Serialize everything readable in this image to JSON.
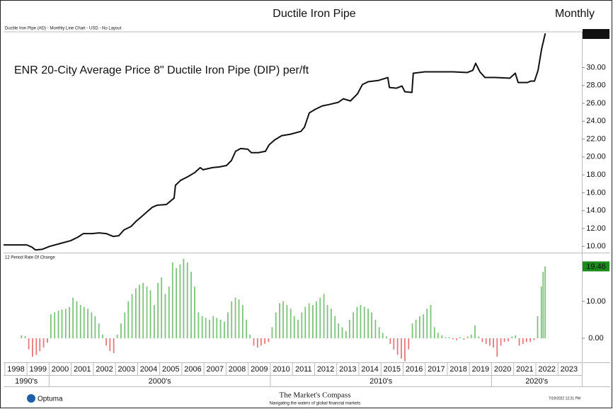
{
  "chart_data": [
    {
      "type": "line",
      "title": "Ductile Iron Pipe",
      "subtitle": "Monthly",
      "caption": "Ductile Iron Pipe (AD) - Monthly Line Chart - USD - No Layout",
      "annotation": "ENR 20-City Average Price 8\" Ductile Iron Pipe (DIP) per/ft",
      "color": "#111111",
      "title_color": "#2e8b2e",
      "x": [
        1997.94,
        1998.99,
        1999.22,
        1999.38,
        1999.7,
        2000.02,
        2000.5,
        2000.98,
        2001.3,
        2001.55,
        2001.94,
        2002.26,
        2002.58,
        2002.9,
        2003.15,
        2003.38,
        2003.7,
        2003.92,
        2004.18,
        2004.4,
        2004.66,
        2004.88,
        2005.3,
        2005.65,
        2005.71,
        2005.94,
        2006.26,
        2006.58,
        2006.83,
        2006.96,
        2007.38,
        2007.7,
        2008.02,
        2008.24,
        2008.43,
        2008.66,
        2008.98,
        2009.14,
        2009.46,
        2009.78,
        2009.94,
        2010.19,
        2010.51,
        2010.9,
        2011.38,
        2011.54,
        2011.76,
        2012.02,
        2012.34,
        2012.66,
        2013.07,
        2013.3,
        2013.62,
        2013.94,
        2014.16,
        2014.42,
        2014.9,
        2015.31,
        2015.38,
        2015.7,
        2015.95,
        2016.08,
        2016.4,
        2016.46,
        2016.98,
        2017.62,
        2018.26,
        2018.9,
        2019.15,
        2019.28,
        2019.47,
        2019.7,
        2020.18,
        2020.82,
        2021.07,
        2021.2,
        2021.62,
        2021.78,
        2021.94,
        2022.1,
        2022.26,
        2022.42,
        2022.45
      ],
      "values": [
        10.16,
        10.16,
        9.92,
        9.6,
        9.68,
        10.0,
        10.32,
        10.64,
        11.03,
        11.43,
        11.43,
        11.51,
        11.43,
        11.11,
        11.19,
        11.83,
        12.22,
        12.78,
        13.33,
        13.81,
        14.37,
        14.6,
        14.68,
        15.4,
        16.83,
        17.38,
        17.78,
        18.25,
        18.81,
        18.57,
        18.81,
        18.89,
        19.05,
        19.6,
        20.64,
        20.95,
        20.87,
        20.48,
        20.48,
        20.64,
        21.35,
        21.9,
        22.38,
        22.54,
        22.86,
        23.33,
        24.93,
        25.32,
        25.71,
        25.87,
        26.11,
        26.51,
        26.27,
        27.07,
        28.1,
        28.42,
        28.57,
        28.89,
        27.78,
        27.7,
        27.94,
        27.3,
        27.22,
        29.37,
        29.53,
        29.53,
        29.53,
        29.45,
        29.69,
        30.48,
        29.53,
        28.89,
        28.89,
        28.81,
        29.37,
        28.33,
        28.33,
        28.49,
        28.49,
        29.69,
        32.07,
        33.76,
        33.76
      ],
      "xlim": [
        1997.94,
        2024.08
      ],
      "xticks": [
        1998,
        1999,
        2000,
        2001,
        2002,
        2003,
        2004,
        2005,
        2006,
        2007,
        2008,
        2009,
        2010,
        2011,
        2012,
        2013,
        2014,
        2015,
        2016,
        2017,
        2018,
        2019,
        2020,
        2021,
        2022,
        2023
      ],
      "x_groups": [
        {
          "value": 1990,
          "label": "1990's"
        },
        {
          "value": 2000,
          "label": "2000's"
        },
        {
          "value": 2010,
          "label": "2010's"
        },
        {
          "value": 2020,
          "label": "2020's"
        }
      ],
      "ylim": [
        9.3,
        34.0
      ],
      "yticks": [
        {
          "value": 10,
          "label": "10.00"
        },
        {
          "value": 12,
          "label": "12.00"
        },
        {
          "value": 14,
          "label": "14.00"
        },
        {
          "value": 16,
          "label": "16.00"
        },
        {
          "value": 18,
          "label": "18.00"
        },
        {
          "value": 20,
          "label": "20.00"
        },
        {
          "value": 22,
          "label": "22.00"
        },
        {
          "value": 24,
          "label": "24.00"
        },
        {
          "value": 26,
          "label": "26.00"
        },
        {
          "value": 28,
          "label": "28.00"
        },
        {
          "value": 30,
          "label": "30.00"
        }
      ],
      "grid": false
    },
    {
      "type": "bar",
      "title": "12 Period Rate Of Change",
      "positive_color": "#7cc47a",
      "negative_color": "#e8787a",
      "label_color": "#1a8a1a",
      "x": [
        1998.75,
        1998.92,
        1999.08,
        1999.25,
        1999.42,
        1999.58,
        1999.75,
        1999.92,
        2000.08,
        2000.25,
        2000.42,
        2000.58,
        2000.75,
        2000.92,
        2001.08,
        2001.25,
        2001.42,
        2001.58,
        2001.75,
        2001.92,
        2002.08,
        2002.25,
        2002.42,
        2002.58,
        2002.75,
        2002.92,
        2003.08,
        2003.25,
        2003.42,
        2003.58,
        2003.75,
        2003.92,
        2004.08,
        2004.25,
        2004.42,
        2004.58,
        2004.75,
        2004.92,
        2005.08,
        2005.25,
        2005.42,
        2005.58,
        2005.75,
        2005.92,
        2006.08,
        2006.25,
        2006.42,
        2006.58,
        2006.75,
        2006.92,
        2007.08,
        2007.25,
        2007.42,
        2007.58,
        2007.75,
        2007.92,
        2008.08,
        2008.25,
        2008.42,
        2008.58,
        2008.75,
        2008.92,
        2009.08,
        2009.25,
        2009.42,
        2009.58,
        2009.75,
        2009.92,
        2010.08,
        2010.25,
        2010.42,
        2010.58,
        2010.75,
        2010.92,
        2011.08,
        2011.25,
        2011.42,
        2011.58,
        2011.75,
        2011.92,
        2012.08,
        2012.25,
        2012.42,
        2012.58,
        2012.75,
        2012.92,
        2013.08,
        2013.25,
        2013.42,
        2013.58,
        2013.75,
        2013.92,
        2014.08,
        2014.25,
        2014.42,
        2014.58,
        2014.75,
        2014.92,
        2015.08,
        2015.25,
        2015.42,
        2015.58,
        2015.75,
        2015.92,
        2016.08,
        2016.25,
        2016.42,
        2016.58,
        2016.75,
        2016.92,
        2017.08,
        2017.25,
        2017.42,
        2017.58,
        2017.75,
        2017.92,
        2018.08,
        2018.25,
        2018.42,
        2018.58,
        2018.75,
        2018.92,
        2019.08,
        2019.25,
        2019.42,
        2019.58,
        2019.75,
        2019.92,
        2020.08,
        2020.25,
        2020.42,
        2020.58,
        2020.75,
        2020.92,
        2021.08,
        2021.25,
        2021.42,
        2021.58,
        2021.75,
        2021.92,
        2022.08,
        2022.25,
        2022.33,
        2022.42
      ],
      "values": [
        0.8,
        0.6,
        -3,
        -5,
        -4.5,
        -3.5,
        -2.5,
        -1.2,
        6.5,
        7,
        7.5,
        7.8,
        8,
        8.5,
        11,
        10,
        9,
        8.5,
        8,
        7,
        6,
        4,
        1,
        -2,
        -3.5,
        -4,
        1,
        4,
        7,
        10,
        12,
        13.5,
        14.5,
        15,
        14,
        13,
        9,
        15,
        16.5,
        12,
        14,
        20.5,
        19,
        20,
        21.5,
        20.5,
        18,
        14,
        7,
        6,
        5.5,
        5,
        6,
        5.5,
        5,
        4.5,
        7,
        10,
        11,
        10.5,
        9,
        5,
        1,
        -2,
        -2.5,
        -2,
        -1.5,
        -1,
        3,
        7,
        9.5,
        10,
        9,
        8,
        6,
        5,
        7,
        8.5,
        9.5,
        9,
        10,
        11,
        12,
        9,
        8,
        6,
        4,
        3,
        2,
        5,
        7,
        8.5,
        9,
        8.5,
        8,
        7,
        5,
        3,
        1.5,
        0.5,
        -1.5,
        -3,
        -4.5,
        -5.5,
        -6.2,
        -3,
        4,
        5,
        6,
        6.5,
        8,
        9,
        3,
        1.5,
        0.8,
        0.3,
        0.3,
        -0.3,
        -0.5,
        0.3,
        -0.4,
        0.5,
        1,
        3.5,
        0.5,
        -1,
        -1.5,
        -2,
        -2.5,
        -5,
        -2,
        -1,
        -0.8,
        0.5,
        0.8,
        -2,
        -1.5,
        -1,
        -1,
        -0.5,
        6,
        14,
        18,
        19.46
      ],
      "xlim": [
        1997.94,
        2024.08
      ],
      "ylim": [
        -6.5,
        23
      ],
      "yticks": [
        {
          "value": 0,
          "label": "0.00"
        },
        {
          "value": 10,
          "label": "10.00"
        }
      ],
      "grid": false
    }
  ],
  "footer": {
    "logo": "Optuma",
    "brand": "The Market's Compass",
    "tagline": "Navigating the waters of global financial markets",
    "timestamp": "7/19/2022 12:31 PM"
  }
}
